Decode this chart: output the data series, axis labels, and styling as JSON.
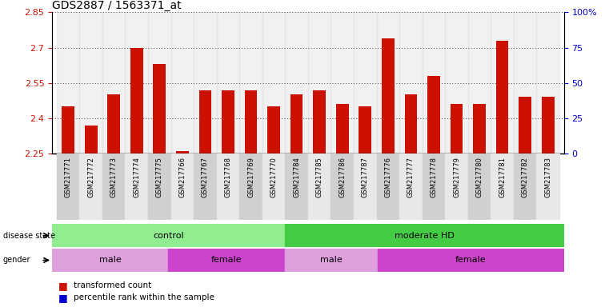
{
  "title": "GDS2887 / 1563371_at",
  "samples": [
    "GSM217771",
    "GSM217772",
    "GSM217773",
    "GSM217774",
    "GSM217775",
    "GSM217766",
    "GSM217767",
    "GSM217768",
    "GSM217769",
    "GSM217770",
    "GSM217784",
    "GSM217785",
    "GSM217786",
    "GSM217787",
    "GSM217776",
    "GSM217777",
    "GSM217778",
    "GSM217779",
    "GSM217780",
    "GSM217781",
    "GSM217782",
    "GSM217783"
  ],
  "red_values": [
    2.45,
    2.37,
    2.5,
    2.7,
    2.63,
    2.26,
    2.52,
    2.52,
    2.52,
    2.45,
    2.5,
    2.52,
    2.46,
    2.45,
    2.74,
    2.5,
    2.58,
    2.46,
    2.46,
    2.73,
    2.49,
    2.49
  ],
  "blue_values": [
    0.03,
    0.03,
    0.05,
    0.22,
    0.22,
    0.01,
    0.04,
    0.04,
    0.06,
    0.03,
    0.03,
    0.06,
    0.03,
    0.03,
    0.22,
    0.04,
    0.04,
    0.03,
    0.03,
    0.22,
    0.03,
    0.03
  ],
  "y_min": 2.25,
  "y_max": 2.85,
  "y_ticks_red": [
    2.25,
    2.4,
    2.55,
    2.7,
    2.85
  ],
  "y_ticks_blue": [
    0,
    25,
    50,
    75,
    100
  ],
  "disease_state": [
    {
      "label": "control",
      "start": 0,
      "end": 10,
      "color": "#90EE90"
    },
    {
      "label": "moderate HD",
      "start": 10,
      "end": 22,
      "color": "#44CC44"
    }
  ],
  "gender": [
    {
      "label": "male",
      "start": 0,
      "end": 5,
      "color": "#DDA0DD"
    },
    {
      "label": "female",
      "start": 5,
      "end": 10,
      "color": "#CC44CC"
    },
    {
      "label": "male",
      "start": 10,
      "end": 14,
      "color": "#DDA0DD"
    },
    {
      "label": "female",
      "start": 14,
      "end": 22,
      "color": "#CC44CC"
    }
  ],
  "bar_width": 0.55,
  "bar_color_red": "#CC1100",
  "bar_color_blue": "#0000CC",
  "background_color": "#ffffff",
  "title_fontsize": 10,
  "label_col_bg": "#D0D0D0"
}
